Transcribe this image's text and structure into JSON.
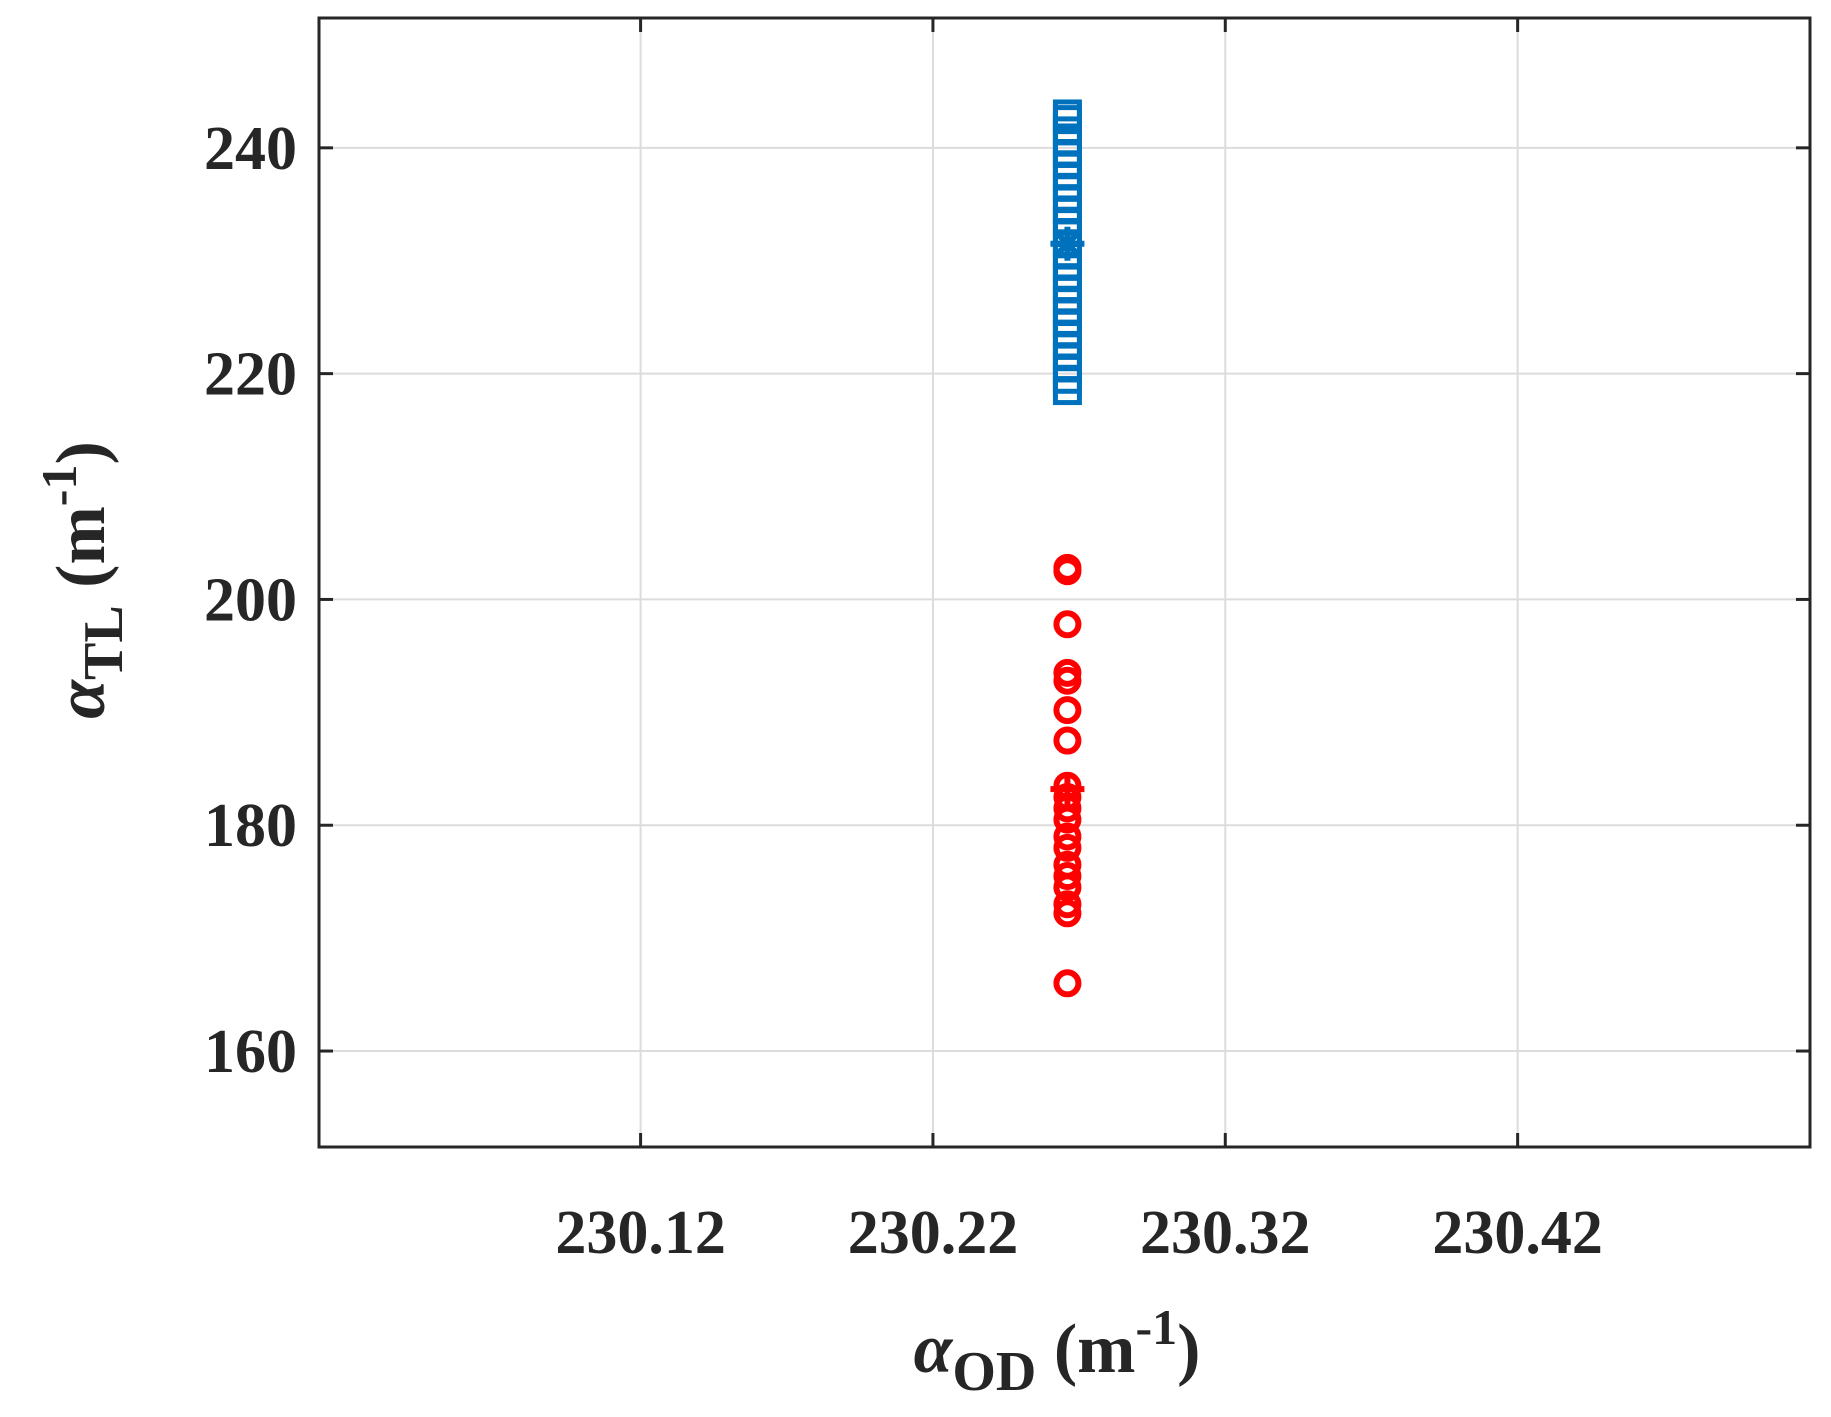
{
  "chart_data": {
    "type": "scatter",
    "title": "",
    "xlabel": {
      "symbol": "α",
      "subscript": "OD",
      "unit_base": " (m",
      "unit_sup": "-1",
      "unit_close": ")"
    },
    "ylabel": {
      "symbol": "α",
      "subscript": "TL",
      "unit_base": " (m",
      "unit_sup": "-1",
      "unit_close": ")"
    },
    "xlim": [
      230.01,
      230.52
    ],
    "ylim": [
      151.5,
      251.5
    ],
    "xticks": [
      230.12,
      230.22,
      230.32,
      230.42
    ],
    "xtick_labels": [
      "230.12",
      "230.22",
      "230.32",
      "230.42"
    ],
    "yticks": [
      160,
      180,
      200,
      220,
      240
    ],
    "ytick_labels": [
      "160",
      "180",
      "200",
      "220",
      "240"
    ],
    "grid": true,
    "legend": null,
    "colors": {
      "blue": "#0072bd",
      "red": "#ff0000",
      "grid": "#dcdcdc",
      "axis": "#262626"
    },
    "series": [
      {
        "marker": "square",
        "color": "#0072bd",
        "x": 230.266,
        "y": [
          218.5,
          219.5,
          220.5,
          221.5,
          222.5,
          223.5,
          224.5,
          225.5,
          226.5,
          227.5,
          228.5,
          229.5,
          230.5,
          231.5,
          232.5,
          233.5,
          234.5,
          235.5,
          236.5,
          237.5,
          238.5,
          239.5,
          240.5,
          241.5,
          242.5,
          243.0
        ]
      },
      {
        "marker": "circle",
        "color": "#ff0000",
        "x": 230.266,
        "y": [
          166.0,
          172.2,
          173.0,
          174.5,
          175.5,
          176.5,
          178.0,
          179.0,
          180.5,
          181.5,
          182.5,
          183.5,
          187.5,
          190.2,
          192.8,
          193.5,
          197.8,
          202.5,
          202.8
        ]
      }
    ],
    "means": [
      {
        "marker": "asterisk",
        "color": "#0072bd",
        "x": 230.266,
        "y": 231.5
      },
      {
        "marker": "plus",
        "color": "#ff0000",
        "x": 230.266,
        "y": 183.2
      }
    ]
  }
}
